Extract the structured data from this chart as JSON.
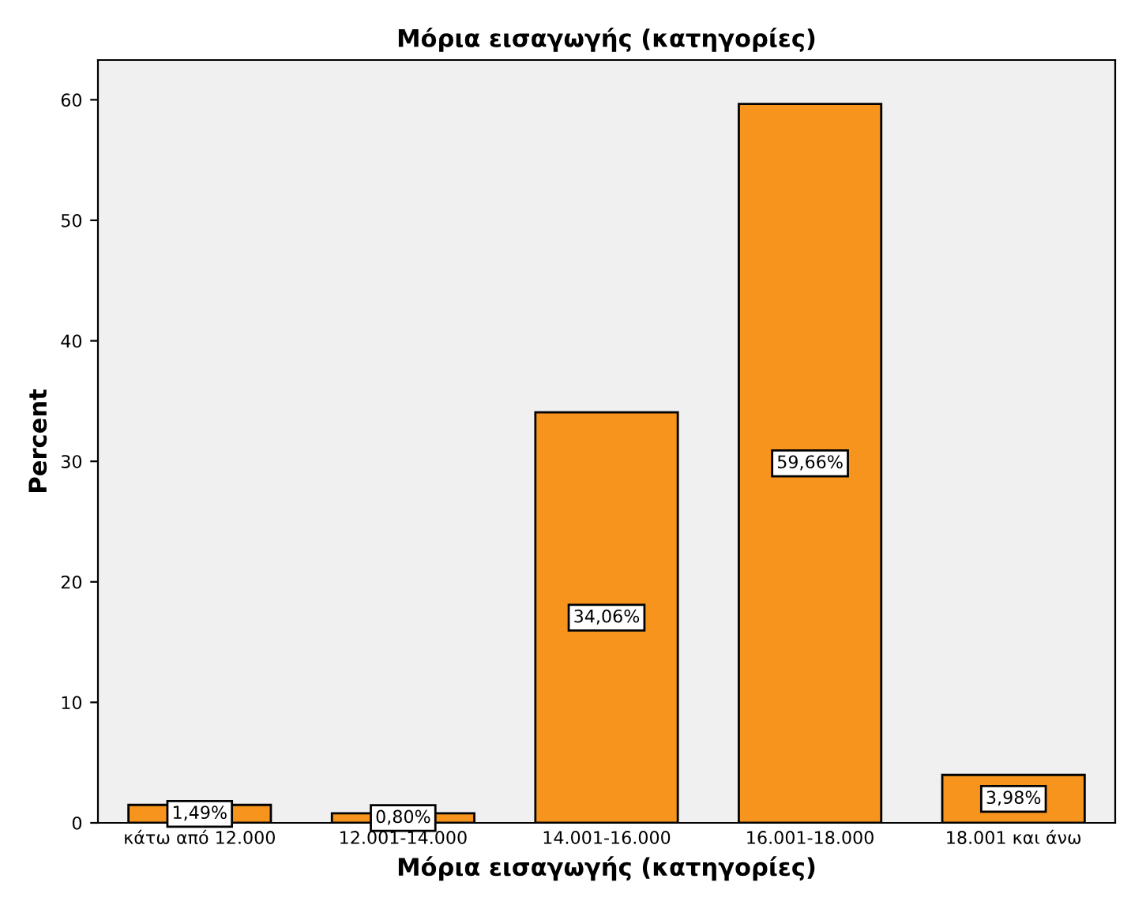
{
  "chart_data": {
    "type": "bar",
    "title": "Μόρια εισαγωγής (κατηγορίες)",
    "xlabel": "Μόρια εισαγωγής (κατηγορίες)",
    "ylabel": "Percent",
    "categories": [
      "κάτω από 12.000",
      "12.001-14.000",
      "14.001-16.000",
      "16.001-18.000",
      "18.001 και άνω"
    ],
    "values": [
      1.49,
      0.8,
      34.06,
      59.66,
      3.98
    ],
    "value_labels": [
      "1,49%",
      "0,80%",
      "34,06%",
      "59,66%",
      "3,98%"
    ],
    "color": "#f7941d",
    "ylim": [
      0,
      63.3
    ],
    "yticks": [
      0,
      10,
      20,
      30,
      40,
      50,
      60
    ],
    "grid": false
  }
}
